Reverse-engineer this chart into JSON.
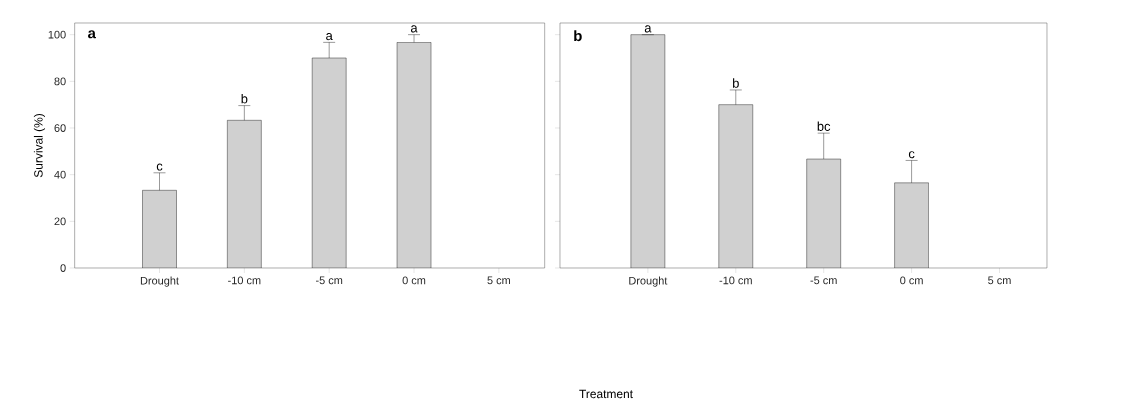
{
  "chart_data": [
    {
      "type": "bar",
      "title": "a",
      "xlabel": "Treatment",
      "ylabel": "Survival (%)",
      "categories": [
        "Drought",
        "-10 cm",
        "-5 cm",
        "0 cm",
        "5 cm"
      ],
      "values": [
        33.3,
        63.3,
        90,
        96.7,
        null
      ],
      "errors": [
        7.5,
        6.3,
        6.7,
        3.3,
        null
      ],
      "color": "#d0d0d0",
      "ylim": [
        0,
        105
      ],
      "yticks": [
        0,
        20,
        40,
        60,
        80,
        100
      ],
      "grid": false,
      "annotations": [
        "c",
        "b",
        "a",
        "a"
      ]
    },
    {
      "type": "bar",
      "title": "b",
      "categories": [
        "Drought",
        "-10 cm",
        "-5 cm",
        "0 cm",
        "5 cm"
      ],
      "values": [
        100,
        70,
        46.7,
        36.5,
        null
      ],
      "errors": [
        null,
        6.3,
        11.1,
        9.6,
        null
      ],
      "color": "#d0d0d0",
      "ylim": [
        0,
        105
      ],
      "yticks": [
        0,
        20,
        40,
        60,
        80,
        100
      ],
      "grid": false,
      "tick_labels": "x",
      "annotations": [
        "a",
        "b",
        "bc",
        "c"
      ]
    }
  ]
}
